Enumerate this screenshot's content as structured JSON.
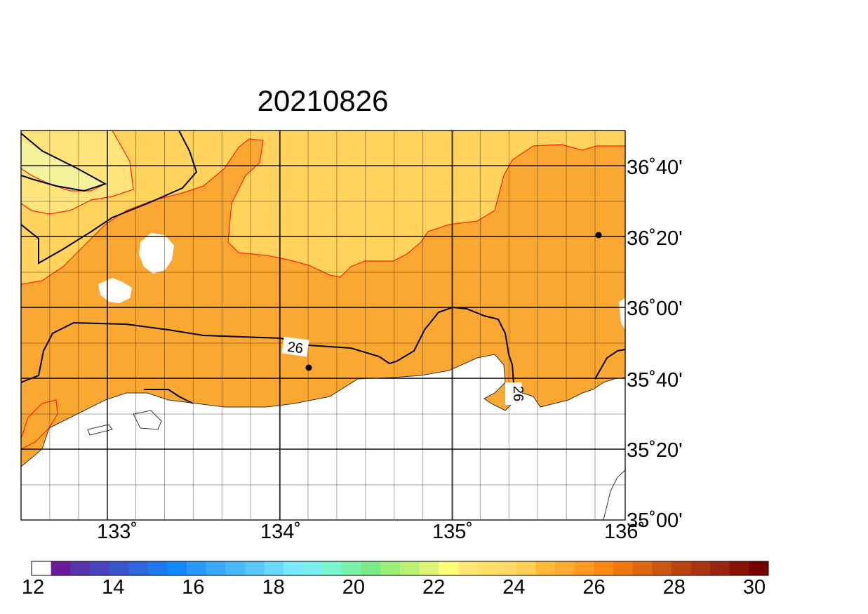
{
  "title": "20210826",
  "axes": {
    "x_ticks": [
      "133˚",
      "134˚",
      "135˚",
      "136˚"
    ],
    "y_ticks": [
      "36˚40'",
      "36˚20'",
      "36˚00'",
      "35˚40'",
      "35˚20'",
      "35˚00'"
    ]
  },
  "contour_labels": [
    "26",
    "26"
  ],
  "colorbar": {
    "tick_labels": [
      "12",
      "14",
      "16",
      "18",
      "20",
      "22",
      "24",
      "26",
      "28",
      "30"
    ],
    "colors": [
      "#ffffff",
      "#6a1a9a",
      "#5533a8",
      "#4a44bc",
      "#3a55cc",
      "#2f66dd",
      "#1f77ee",
      "#0f88ff",
      "#2a99ff",
      "#3aa8ff",
      "#4ab8ff",
      "#5ac8ff",
      "#6ad8ff",
      "#7ae8ff",
      "#7af0ee",
      "#7af4cc",
      "#7af0a8",
      "#7aea88",
      "#99ee77",
      "#bbf077",
      "#ddf577",
      "#ffff77",
      "#ffe877",
      "#ffe066",
      "#ffd866",
      "#ffd055",
      "#ffb838",
      "#ffaa33",
      "#ff9922",
      "#ff8811",
      "#ee7711",
      "#dd6611",
      "#cc5511",
      "#bb4411",
      "#aa3311",
      "#992211",
      "#881100",
      "#770000"
    ]
  },
  "colors": {
    "sst_24_25": "#ffd35c",
    "sst_25_26": "#faa832",
    "sst_23_24": "#fee47a",
    "sst_22_23": "#f4f29a",
    "land": "#ffffff",
    "contour_26": "#000000",
    "contour_25": "#ff2200"
  },
  "markers": [
    "station-1",
    "station-2"
  ]
}
